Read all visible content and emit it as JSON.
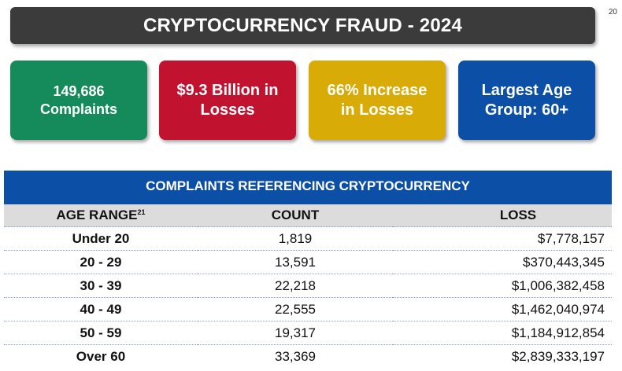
{
  "page_number": "20",
  "title": "CRYPTOCURRENCY FRAUD - 2024",
  "stats": [
    {
      "line1": "149,686",
      "line2": "Complaints",
      "color": "#158a5b"
    },
    {
      "line1": "$9.3 Billion in",
      "line2": "Losses",
      "color": "#c1122f"
    },
    {
      "line1": "66% Increase",
      "line2": "in Losses",
      "color": "#d9ab06"
    },
    {
      "line1": "Largest Age",
      "line2": "Group: 60+",
      "color": "#0b4fa6"
    }
  ],
  "table": {
    "title": "COMPLAINTS REFERENCING CRYPTOCURRENCY",
    "headers": {
      "age": "AGE RANGE",
      "age_footnote": "21",
      "count": "COUNT",
      "loss": "LOSS"
    },
    "rows": [
      {
        "age": "Under 20",
        "count": "1,819",
        "loss": "$7,778,157"
      },
      {
        "age": "20 - 29",
        "count": "13,591",
        "loss": "$370,443,345"
      },
      {
        "age": "30 - 39",
        "count": "22,218",
        "loss": "$1,006,382,458"
      },
      {
        "age": "40 - 49",
        "count": "22,555",
        "loss": "$1,462,040,974"
      },
      {
        "age": "50 - 59",
        "count": "19,317",
        "loss": "$1,184,912,854"
      },
      {
        "age": "Over 60",
        "count": "33,369",
        "loss": "$2,839,333,197"
      }
    ]
  }
}
